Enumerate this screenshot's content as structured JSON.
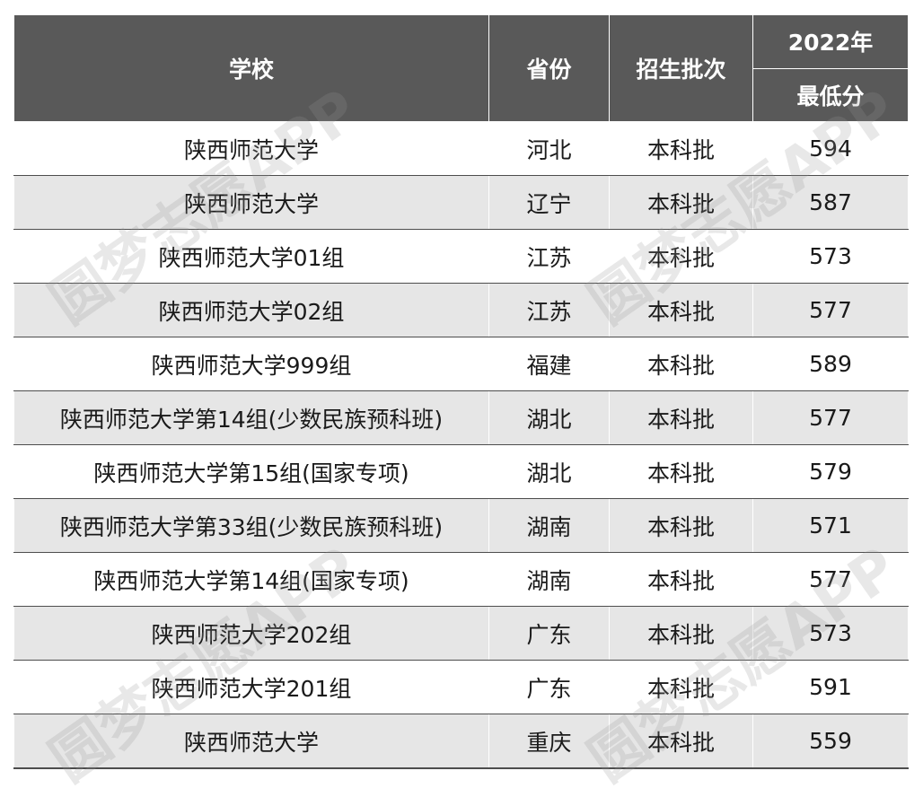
{
  "header": {
    "school": "学校",
    "province": "省份",
    "batch": "招生批次",
    "year": "2022年",
    "min_score": "最低分"
  },
  "rows": [
    {
      "school": "陕西师范大学",
      "province": "河北",
      "batch": "本科批",
      "score": "594"
    },
    {
      "school": "陕西师范大学",
      "province": "辽宁",
      "batch": "本科批",
      "score": "587"
    },
    {
      "school": "陕西师范大学01组",
      "province": "江苏",
      "batch": "本科批",
      "score": "573"
    },
    {
      "school": "陕西师范大学02组",
      "province": "江苏",
      "batch": "本科批",
      "score": "577"
    },
    {
      "school": "陕西师范大学999组",
      "province": "福建",
      "batch": "本科批",
      "score": "589"
    },
    {
      "school": "陕西师范大学第14组(少数民族预科班)",
      "province": "湖北",
      "batch": "本科批",
      "score": "577"
    },
    {
      "school": "陕西师范大学第15组(国家专项)",
      "province": "湖北",
      "batch": "本科批",
      "score": "579"
    },
    {
      "school": "陕西师范大学第33组(少数民族预科班)",
      "province": "湖南",
      "batch": "本科批",
      "score": "571"
    },
    {
      "school": "陕西师范大学第14组(国家专项)",
      "province": "湖南",
      "batch": "本科批",
      "score": "577"
    },
    {
      "school": "陕西师范大学202组",
      "province": "广东",
      "batch": "本科批",
      "score": "573"
    },
    {
      "school": "陕西师范大学201组",
      "province": "广东",
      "batch": "本科批",
      "score": "591"
    },
    {
      "school": "陕西师范大学",
      "province": "重庆",
      "batch": "本科批",
      "score": "559"
    }
  ],
  "watermark": "圆梦志愿APP"
}
